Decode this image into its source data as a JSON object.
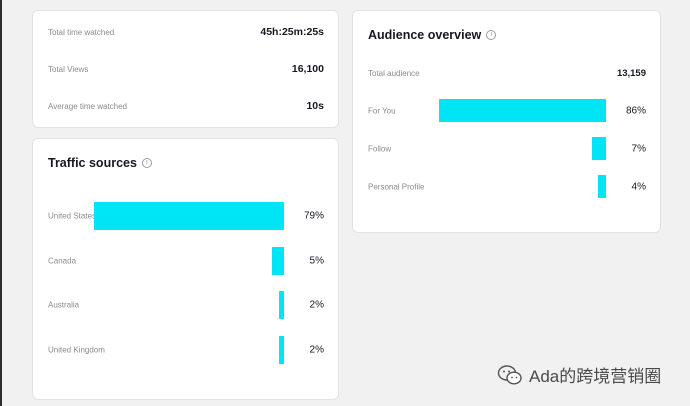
{
  "stats": [
    {
      "label": "Total time watched",
      "value": "45h:25m:25s"
    },
    {
      "label": "Total Views",
      "value": "16,100"
    },
    {
      "label": "Average time watched",
      "value": "10s"
    }
  ],
  "traffic": {
    "title": "Traffic sources",
    "items": [
      {
        "label": "United States",
        "pct_text": "79%",
        "pct": 79
      },
      {
        "label": "Canada",
        "pct_text": "5%",
        "pct": 5
      },
      {
        "label": "Australia",
        "pct_text": "2%",
        "pct": 2
      },
      {
        "label": "United Kingdom",
        "pct_text": "2%",
        "pct": 2
      }
    ]
  },
  "audience": {
    "title": "Audience overview",
    "total_label": "Total audience",
    "total_value": "13,159",
    "items": [
      {
        "label": "For You",
        "pct_text": "86%",
        "pct": 86
      },
      {
        "label": "Follow",
        "pct_text": "7%",
        "pct": 7
      },
      {
        "label": "Personal Profile",
        "pct_text": "4%",
        "pct": 4
      }
    ]
  },
  "watermark": {
    "text": "Ada的跨境营销圈",
    "icon": "wechat-icon"
  },
  "colors": {
    "bar": "#00e5f5",
    "card": "#ffffff",
    "background": "#f1f1f2"
  }
}
